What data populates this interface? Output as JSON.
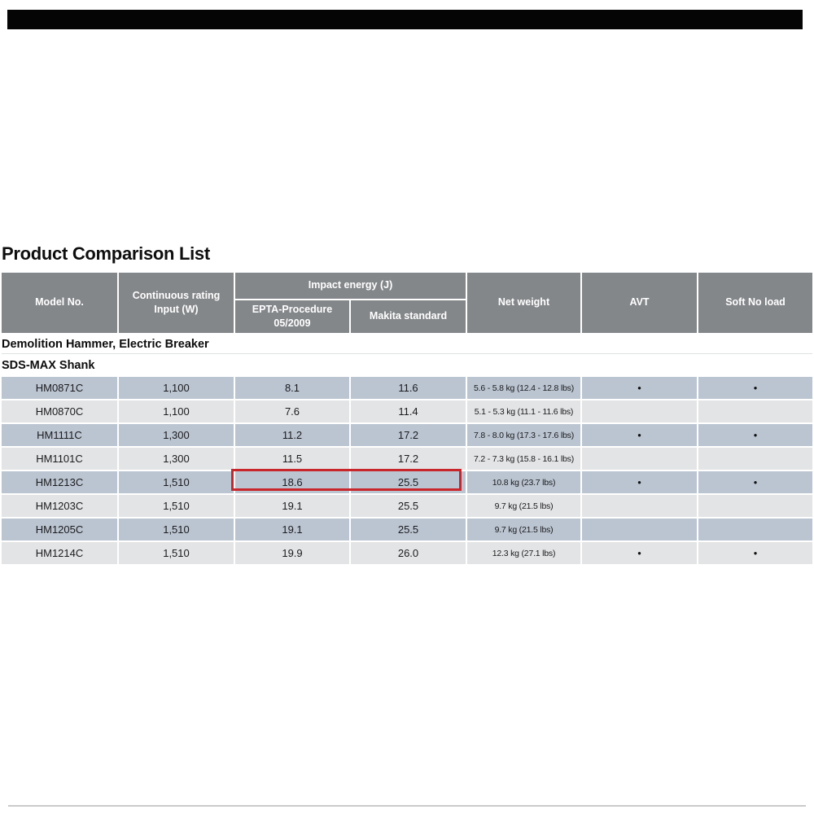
{
  "page": {
    "title": "Product Comparison List"
  },
  "table": {
    "headers": {
      "model_no": "Model No.",
      "continuous_rating_line1": "Continuous rating",
      "continuous_rating_line2": "Input (W)",
      "impact_energy": "Impact energy (J)",
      "epta_line1": "EPTA-Procedure",
      "epta_line2": "05/2009",
      "makita_standard": "Makita standard",
      "net_weight": "Net weight",
      "avt": "AVT",
      "soft_no_load": "Soft No load"
    },
    "section1": "Demolition Hammer, Electric Breaker",
    "section2": "SDS-MAX Shank",
    "rows": [
      {
        "model": "HM0871C",
        "input_w": "1,100",
        "epta": "8.1",
        "makita": "11.6",
        "net_weight": "5.6 - 5.8 kg (12.4 - 12.8 lbs)",
        "avt": "●",
        "soft_no_load": "●"
      },
      {
        "model": "HM0870C",
        "input_w": "1,100",
        "epta": "7.6",
        "makita": "11.4",
        "net_weight": "5.1 - 5.3 kg (11.1 - 11.6 lbs)",
        "avt": "",
        "soft_no_load": ""
      },
      {
        "model": "HM1111C",
        "input_w": "1,300",
        "epta": "11.2",
        "makita": "17.2",
        "net_weight": "7.8 - 8.0 kg (17.3 - 17.6 lbs)",
        "avt": "●",
        "soft_no_load": "●"
      },
      {
        "model": "HM1101C",
        "input_w": "1,300",
        "epta": "11.5",
        "makita": "17.2",
        "net_weight": "7.2 - 7.3 kg (15.8 - 16.1 lbs)",
        "avt": "",
        "soft_no_load": ""
      },
      {
        "model": "HM1213C",
        "input_w": "1,510",
        "epta": "18.6",
        "makita": "25.5",
        "net_weight": "10.8 kg (23.7 lbs)",
        "avt": "●",
        "soft_no_load": "●",
        "highlighted": true
      },
      {
        "model": "HM1203C",
        "input_w": "1,510",
        "epta": "19.1",
        "makita": "25.5",
        "net_weight": "9.7 kg (21.5 lbs)",
        "avt": "",
        "soft_no_load": ""
      },
      {
        "model": "HM1205C",
        "input_w": "1,510",
        "epta": "19.1",
        "makita": "25.5",
        "net_weight": "9.7 kg (21.5 lbs)",
        "avt": "",
        "soft_no_load": ""
      },
      {
        "model": "HM1214C",
        "input_w": "1,510",
        "epta": "19.9",
        "makita": "26.0",
        "net_weight": "12.3 kg (27.1 lbs)",
        "avt": "●",
        "soft_no_load": "●"
      }
    ],
    "highlight": {
      "row_model": "HM1213C",
      "columns": [
        "epta",
        "makita"
      ],
      "border_color": "#c9262b"
    },
    "colors": {
      "header_bg": "#84878a",
      "row_alt_blue": "#bbc5d1",
      "row_alt_gray": "#e3e4e5",
      "highlight_border": "#c9262b"
    }
  }
}
